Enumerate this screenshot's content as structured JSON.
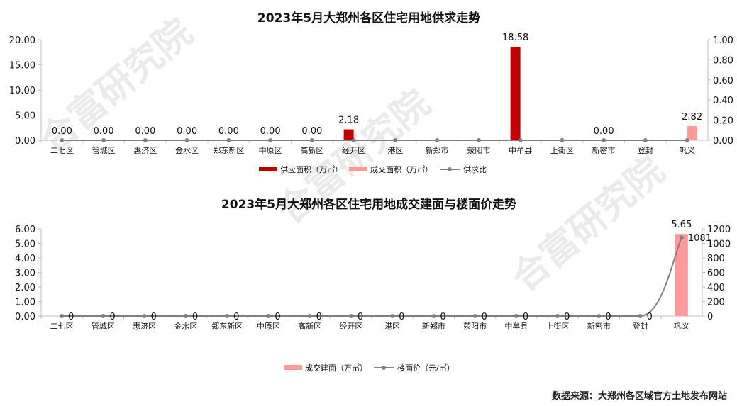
{
  "watermark": "合富研究院",
  "source_label": "数据来源：大郑州各区域官方土地发布网站",
  "chart_data": [
    {
      "type": "bar",
      "title": "2023年5月大郑州各区住宅用地供求走势",
      "categories": [
        "二七区",
        "管城区",
        "惠济区",
        "金水区",
        "郑东新区",
        "中原区",
        "高新区",
        "经开区",
        "港区",
        "新郑市",
        "荥阳市",
        "中牟县",
        "上街区",
        "新密市",
        "登封",
        "巩义"
      ],
      "y_ticks": [
        "0.00",
        "5.00",
        "10.00",
        "15.00",
        "20.00"
      ],
      "y2_ticks": [
        "0.00",
        "0.20",
        "0.40",
        "0.60",
        "0.80",
        "1.00"
      ],
      "ylim": [
        0,
        20
      ],
      "y2lim": [
        0,
        1
      ],
      "series": [
        {
          "name": "供应面积（万㎡）",
          "kind": "bar",
          "color": "#c00000",
          "values": [
            0,
            0,
            0,
            0,
            0,
            0,
            0,
            2.18,
            null,
            null,
            null,
            18.58,
            null,
            0,
            null,
            0
          ],
          "labels": [
            "0.00",
            "0.00",
            "0.00",
            "0.00",
            "0.00",
            "0.00",
            "0.00",
            "2.18",
            "",
            "",
            "",
            "18.58",
            "",
            "0.00",
            "",
            ""
          ]
        },
        {
          "name": "成交面积（万㎡）",
          "kind": "bar",
          "color": "#ff9999",
          "values": [
            null,
            null,
            null,
            null,
            null,
            null,
            null,
            null,
            null,
            null,
            null,
            null,
            null,
            null,
            null,
            2.82
          ],
          "labels": [
            "",
            "",
            "",
            "",
            "",
            "",
            "",
            "",
            "",
            "",
            "",
            "",
            "",
            "",
            "",
            "2.82"
          ]
        },
        {
          "name": "供求比",
          "kind": "line",
          "color": "#808080",
          "axis": "y2",
          "values": [
            0,
            0,
            0,
            0,
            0,
            0,
            0,
            0,
            0,
            0,
            0,
            0,
            0,
            0,
            0,
            0
          ]
        }
      ],
      "legend": "bottom"
    },
    {
      "type": "bar",
      "title": "2023年5月大郑州各区住宅用地成交建面与楼面价走势",
      "categories": [
        "二七区",
        "管城区",
        "惠济区",
        "金水区",
        "郑东新区",
        "中原区",
        "高新区",
        "经开区",
        "港区",
        "新郑市",
        "荥阳市",
        "中牟县",
        "上街区",
        "新密市",
        "登封",
        "巩义"
      ],
      "y_ticks": [
        "0.00",
        "1.00",
        "2.00",
        "3.00",
        "4.00",
        "5.00",
        "6.00"
      ],
      "y2_ticks": [
        "0",
        "200",
        "400",
        "600",
        "800",
        "1000",
        "1200"
      ],
      "ylim": [
        0,
        6
      ],
      "y2lim": [
        0,
        1200
      ],
      "series": [
        {
          "name": "成交建面（万㎡）",
          "kind": "bar",
          "color": "#ff9999",
          "values": [
            null,
            null,
            null,
            null,
            null,
            null,
            null,
            null,
            null,
            null,
            null,
            null,
            null,
            null,
            null,
            5.65
          ],
          "labels": [
            "",
            "",
            "",
            "",
            "",
            "",
            "",
            "",
            "",
            "",
            "",
            "",
            "",
            "",
            "",
            "5.65"
          ]
        },
        {
          "name": "楼面价（元/㎡）",
          "kind": "line",
          "color": "#808080",
          "axis": "y2",
          "values": [
            0,
            0,
            0,
            0,
            0,
            0,
            0,
            0,
            0,
            0,
            0,
            0,
            0,
            0,
            0,
            1081
          ],
          "labels": [
            "0",
            "0",
            "0",
            "0",
            "0",
            "0",
            "0",
            "0",
            "0",
            "0",
            "0",
            "0",
            "0",
            "0",
            "0",
            "1081"
          ]
        }
      ],
      "legend": "bottom"
    }
  ]
}
